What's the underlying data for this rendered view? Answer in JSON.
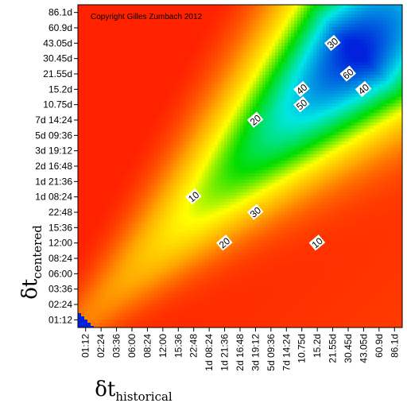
{
  "chart_data": {
    "type": "heatmap",
    "title": "",
    "copyright": "Copyright Gilles Zumbach 2012",
    "xlabel": {
      "symbol": "δt",
      "subscript": "historical"
    },
    "ylabel": {
      "symbol": "δt",
      "subscript": "centered"
    },
    "x_ticks": [
      "01:12",
      "02:24",
      "03:36",
      "06:00",
      "08:24",
      "12:00",
      "15:36",
      "22:48",
      "1d 08:24",
      "1d 21:36",
      "2d 16:48",
      "3d 19:12",
      "5d 09:36",
      "7d 14:24",
      "10.75d",
      "15.2d",
      "21.55d",
      "30.45d",
      "43.05d",
      "60.9d",
      "86.1d"
    ],
    "y_ticks": [
      "01:12",
      "02:24",
      "03:36",
      "06:00",
      "08:24",
      "12:00",
      "15:36",
      "22:48",
      "1d 08:24",
      "1d 21:36",
      "2d 16:48",
      "3d 19:12",
      "5d 09:36",
      "7d 14:24",
      "10.75d",
      "15.2d",
      "21.55d",
      "30.45d",
      "43.05d",
      "60.9d",
      "86.1d"
    ],
    "contour_levels": [
      10,
      20,
      30,
      40,
      50,
      60
    ],
    "contour_labels": [
      {
        "text": "10",
        "near_x": "22:48",
        "near_y": "1d 08:24"
      },
      {
        "text": "20",
        "near_x": "3d 19:12",
        "near_y": "7d 14:24"
      },
      {
        "text": "30",
        "near_x": "21.55d",
        "near_y": "43.05d"
      },
      {
        "text": "40",
        "near_x": "10.75d",
        "near_y": "15.2d"
      },
      {
        "text": "50",
        "near_x": "10.75d",
        "near_y": "10.75d"
      },
      {
        "text": "60",
        "near_x": "30.45d",
        "near_y": "21.55d"
      },
      {
        "text": "40",
        "near_x": "43.05d",
        "near_y": "15.2d"
      },
      {
        "text": "30",
        "near_x": "3d 19:12",
        "near_y": "22:48"
      },
      {
        "text": "20",
        "near_x": "1d 21:36",
        "near_y": "12:00"
      },
      {
        "text": "10",
        "near_x": "15.2d",
        "near_y": "12:00"
      }
    ],
    "colorscale": [
      "#ff2200",
      "#ffa800",
      "#ffff00",
      "#00dd00",
      "#00e6e6",
      "#0022dd"
    ]
  }
}
